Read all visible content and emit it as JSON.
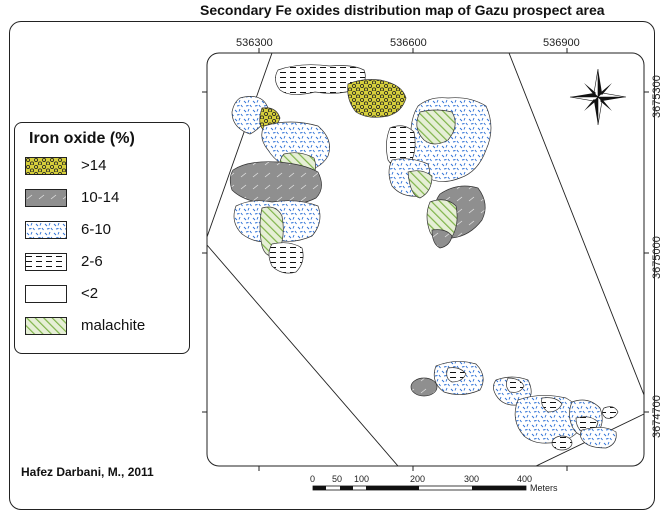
{
  "title": "Secondary Fe oxides distribution map of Gazu prospect area",
  "x_ticks": [
    "536300",
    "536600",
    "536900"
  ],
  "y_ticks": [
    "3675300",
    "3675000",
    "3674700"
  ],
  "legend": {
    "title": "Iron oxide (%)",
    "items": [
      {
        "label": ">14",
        "pattern": "honeycomb-yellow"
      },
      {
        "label": "10-14",
        "pattern": "gray-streak"
      },
      {
        "label": "6-10",
        "pattern": "blue-dash"
      },
      {
        "label": "2-6",
        "pattern": "black-dash"
      },
      {
        "label": "<2",
        "pattern": "empty"
      },
      {
        "label": "malachite",
        "pattern": "green-hatch"
      }
    ]
  },
  "scale_bar": {
    "labels": [
      "0",
      "50",
      "100",
      "200",
      "300",
      "400"
    ],
    "unit": "Meters"
  },
  "north_arrow_icon": "compass-rose-icon",
  "credit": "Hafez Darbani, M., 2011",
  "colors": {
    "yellow_fill": "#d6cf3b",
    "gray_fill": "#8f8f8f",
    "blue_dash": "#2a6fd6",
    "malachite_green": "#7fb44a"
  }
}
